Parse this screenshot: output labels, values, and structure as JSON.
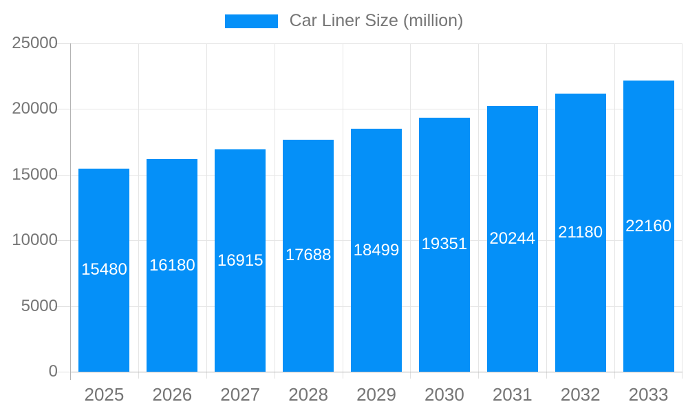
{
  "legend": {
    "label": "Car Liner Size (million)"
  },
  "chart_data": {
    "type": "bar",
    "title": "Car Liner Size (million)",
    "series_name": "Car Liner Size (million)",
    "categories": [
      "2025",
      "2026",
      "2027",
      "2028",
      "2029",
      "2030",
      "2031",
      "2032",
      "2033"
    ],
    "values": [
      15480,
      16180,
      16915,
      17688,
      18499,
      19351,
      20244,
      21180,
      22160
    ],
    "xlabel": "",
    "ylabel": "",
    "ylim": [
      0,
      25000
    ],
    "yticks": [
      0,
      5000,
      10000,
      15000,
      20000,
      25000
    ],
    "grid": true,
    "legend_position": "top-center",
    "bar_color": "#0590f8",
    "value_label_color": "#ffffff",
    "axis_text_color": "#757575",
    "grid_color": "#e5e5e5",
    "axis_line_color": "#b3b3b3"
  }
}
